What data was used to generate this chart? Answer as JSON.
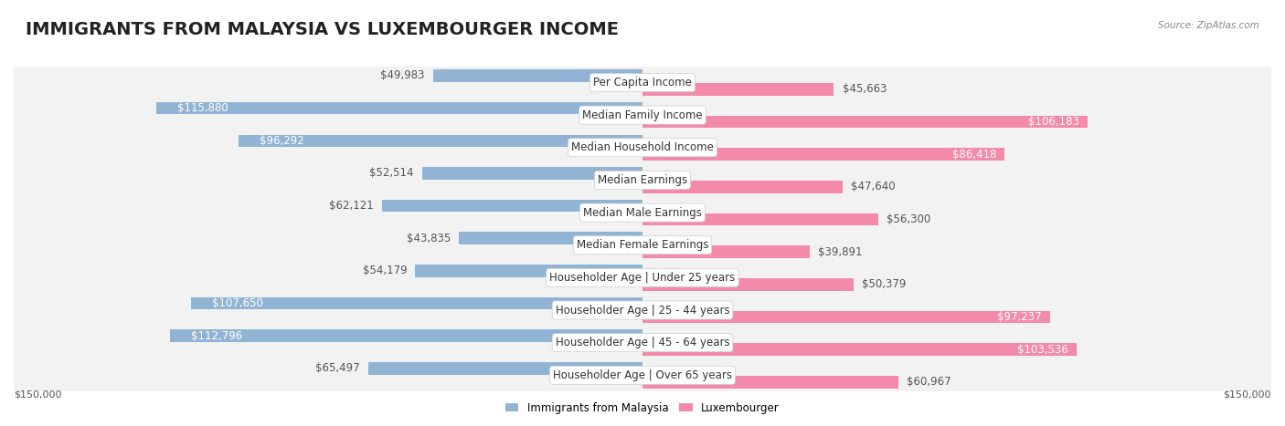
{
  "title": "IMMIGRANTS FROM MALAYSIA VS LUXEMBOURGER INCOME",
  "source": "Source: ZipAtlas.com",
  "categories": [
    "Per Capita Income",
    "Median Family Income",
    "Median Household Income",
    "Median Earnings",
    "Median Male Earnings",
    "Median Female Earnings",
    "Householder Age | Under 25 years",
    "Householder Age | 25 - 44 years",
    "Householder Age | 45 - 64 years",
    "Householder Age | Over 65 years"
  ],
  "malaysia_values": [
    49983,
    115880,
    96292,
    52514,
    62121,
    43835,
    54179,
    107650,
    112796,
    65497
  ],
  "luxembourger_values": [
    45663,
    106183,
    86418,
    47640,
    56300,
    39891,
    50379,
    97237,
    103536,
    60967
  ],
  "malaysia_labels": [
    "$49,983",
    "$115,880",
    "$96,292",
    "$52,514",
    "$62,121",
    "$43,835",
    "$54,179",
    "$107,650",
    "$112,796",
    "$65,497"
  ],
  "luxembourger_labels": [
    "$45,663",
    "$106,183",
    "$86,418",
    "$47,640",
    "$56,300",
    "$39,891",
    "$50,379",
    "$97,237",
    "$103,536",
    "$60,967"
  ],
  "malaysia_color": "#92b4d4",
  "luxembourger_color": "#f48aaa",
  "malaysia_color_strong": "#5b9bd5",
  "luxembourger_color_strong": "#f06090",
  "max_value": 150000,
  "background_color": "#ffffff",
  "row_background": "#f0f0f0",
  "legend_malaysia": "Immigrants from Malaysia",
  "legend_luxembourger": "Luxembourger",
  "title_fontsize": 14,
  "label_fontsize": 8.5,
  "category_fontsize": 8.5,
  "axis_label_fontsize": 8
}
